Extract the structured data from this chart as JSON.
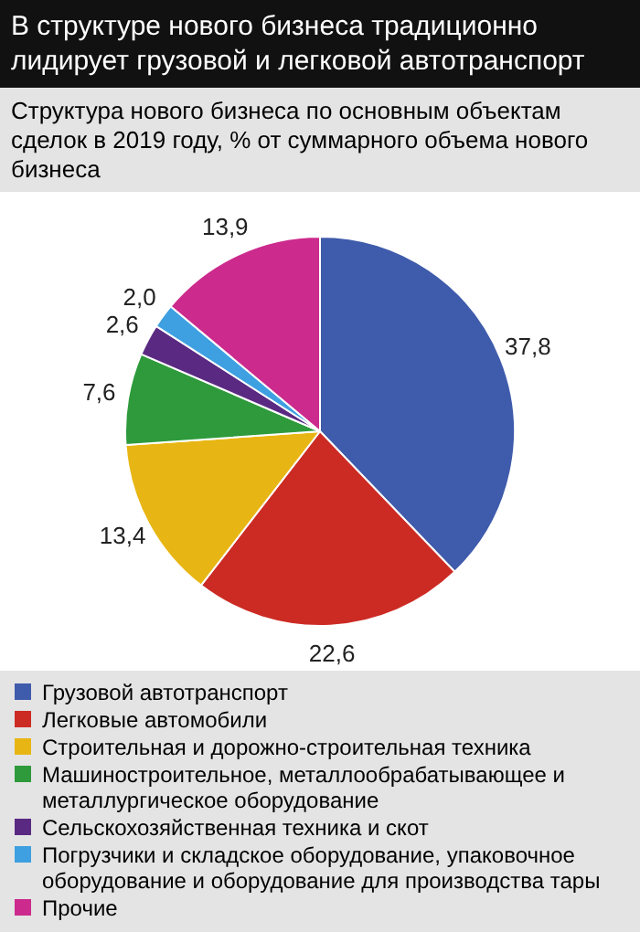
{
  "chart_data": {
    "type": "pie",
    "title": "В структуре нового бизнеса традиционно лидирует грузовой и легковой автотранспорт",
    "subtitle": "Структура нового бизнеса по основным объектам сделок в 2019 году, % от суммарного объема нового бизнеса",
    "categories": [
      "Грузовой автотранспорт",
      "Легковые автомобили",
      "Строительная и дорожно-строительная техника",
      "Машиностроительное, металлообрабатывающее и металлургическое оборудование",
      "Сельскохозяйственная техника и скот",
      "Погрузчики и складское оборудование, упаковочное оборудование и оборудование для производства тары",
      "Прочие"
    ],
    "values": [
      37.8,
      22.6,
      13.4,
      7.6,
      2.6,
      2.0,
      13.9
    ],
    "colors": [
      "#3f5bab",
      "#cc2b24",
      "#e8b614",
      "#2e9a3c",
      "#5a2a82",
      "#3ea0e0",
      "#cc2a8c"
    ],
    "value_labels": [
      "37,8",
      "22,6",
      "13,4",
      "7,6",
      "2,6",
      "2,0",
      "13,9"
    ],
    "legend": "bottom"
  }
}
